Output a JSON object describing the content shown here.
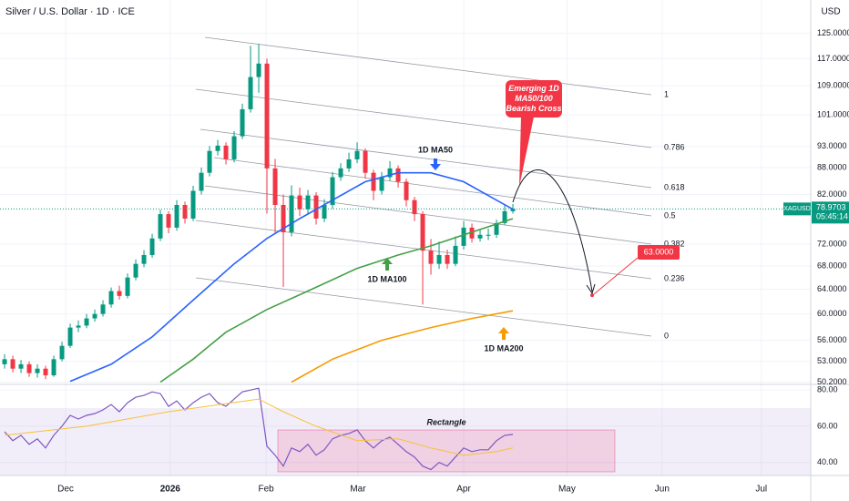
{
  "header": {
    "title": "Silver / U.S. Dollar · 1D · ICE",
    "currency": "USD"
  },
  "chart_data": [
    {
      "type": "candlestick",
      "symbol": "XAGUSD",
      "last_price": 78.9703,
      "countdown": "05:45:14",
      "log_scale": true,
      "grid": true,
      "up_color": "#089981",
      "down_color": "#f23645",
      "xlim": [
        -0.56,
        98.33
      ],
      "xticks": [
        {
          "value": 7.44,
          "label": "Dec"
        },
        {
          "value": 20.2,
          "label": "2026"
        },
        {
          "value": 31.9,
          "label": "Feb"
        },
        {
          "value": 43.1,
          "label": "Mar"
        },
        {
          "value": 56.0,
          "label": "Apr"
        },
        {
          "value": 68.6,
          "label": "May"
        },
        {
          "value": 80.2,
          "label": "Jun"
        },
        {
          "value": 92.3,
          "label": "Jul"
        }
      ],
      "ylim": [
        49.9,
        136.4
      ],
      "yticks": [
        {
          "value": 125,
          "label": "125.0000"
        },
        {
          "value": 117,
          "label": "117.0000"
        },
        {
          "value": 109,
          "label": "109.0000"
        },
        {
          "value": 101,
          "label": "101.0000"
        },
        {
          "value": 93,
          "label": "93.0000"
        },
        {
          "value": 88,
          "label": "88.0000"
        },
        {
          "value": 82,
          "label": "82.0000"
        },
        {
          "value": 72,
          "label": "72.0000"
        },
        {
          "value": 68,
          "label": "68.0000"
        },
        {
          "value": 64,
          "label": "64.0000"
        },
        {
          "value": 60,
          "label": "60.0000"
        },
        {
          "value": 56,
          "label": "56.0000"
        },
        {
          "value": 53,
          "label": "53.0000"
        },
        {
          "value": 50.2,
          "label": "50.2000"
        }
      ],
      "open": [
        52.6,
        53.3,
        52.0,
        52.6,
        51.4,
        52.0,
        51.1,
        53.3,
        55.2,
        57.9,
        58.2,
        59.3,
        60.0,
        61.5,
        63.7,
        62.9,
        66.0,
        68.4,
        70.0,
        73.1,
        77.9,
        75.2,
        79.8,
        77.0,
        82.8,
        86.8,
        91.9,
        93.2,
        89.9,
        95.5,
        102.5,
        111.5,
        115.5,
        87.8,
        79.8,
        74.3,
        81.8,
        78.9,
        81.8,
        77.0,
        79.8,
        85.8,
        87.8,
        89.9,
        91.9,
        86.8,
        82.8,
        85.8,
        87.8,
        84.8,
        80.8,
        77.9,
        70.8,
        68.4,
        70.0,
        68.4,
        71.7,
        75.2,
        73.1,
        73.8,
        73.8,
        76.1,
        78.5
      ],
      "high": [
        54.0,
        53.8,
        53.2,
        53.0,
        52.6,
        52.4,
        53.8,
        55.8,
        58.5,
        59.0,
        60.0,
        60.7,
        62.2,
        64.3,
        64.6,
        66.7,
        69.2,
        70.9,
        74.0,
        78.8,
        78.5,
        80.8,
        80.5,
        83.9,
        88.0,
        93.1,
        94.6,
        94.0,
        96.8,
        104.0,
        121.0,
        121.6,
        117.0,
        90.0,
        82.0,
        84.0,
        83.5,
        83.0,
        82.5,
        81.0,
        87.0,
        89.0,
        91.5,
        94.0,
        92.5,
        87.5,
        87.0,
        89.5,
        88.5,
        85.5,
        81.5,
        78.5,
        73.0,
        72.5,
        71.0,
        73.5,
        76.5,
        76.0,
        74.8,
        75.0,
        76.8,
        79.8,
        80.0
      ],
      "low": [
        52.0,
        51.5,
        51.4,
        50.9,
        50.8,
        50.6,
        50.9,
        53.0,
        54.9,
        57.2,
        57.8,
        58.8,
        59.6,
        61.0,
        62.3,
        62.5,
        65.5,
        67.8,
        69.5,
        72.6,
        74.1,
        74.6,
        76.0,
        76.5,
        82.0,
        86.0,
        90.8,
        88.7,
        89.2,
        94.8,
        101.6,
        107.0,
        78.0,
        74.0,
        64.4,
        73.5,
        77.5,
        78.0,
        75.8,
        76.3,
        79.0,
        85.0,
        87.0,
        89.0,
        85.5,
        80.8,
        82.0,
        85.0,
        83.5,
        79.5,
        76.5,
        61.5,
        66.5,
        67.5,
        67.5,
        68.0,
        71.0,
        72.3,
        72.5,
        72.8,
        73.2,
        75.8,
        78.0
      ],
      "close": [
        53.3,
        52.0,
        52.6,
        51.4,
        52.0,
        51.1,
        53.3,
        55.2,
        57.9,
        58.2,
        59.3,
        60.0,
        61.5,
        63.7,
        62.9,
        66.0,
        68.4,
        70.0,
        73.1,
        77.9,
        75.2,
        79.8,
        77.0,
        82.8,
        86.8,
        91.9,
        93.2,
        89.9,
        95.5,
        102.5,
        111.5,
        115.5,
        87.8,
        79.8,
        74.3,
        81.8,
        78.9,
        81.8,
        77.0,
        79.8,
        85.8,
        87.8,
        89.9,
        91.9,
        86.8,
        82.8,
        85.8,
        87.8,
        84.8,
        80.8,
        77.9,
        70.8,
        68.4,
        70.0,
        68.4,
        71.7,
        75.2,
        73.1,
        73.8,
        73.8,
        76.1,
        78.5,
        78.97
      ],
      "series": [
        {
          "name": "1D MA50",
          "color": "#2962ff",
          "x": [
            8,
            13,
            18,
            23,
            28,
            32,
            36,
            40,
            44,
            48,
            52,
            56,
            60,
            62
          ],
          "values": [
            50.3,
            52.6,
            56.5,
            62.2,
            68.4,
            73.1,
            77.0,
            80.8,
            84.8,
            86.8,
            86.8,
            84.8,
            80.8,
            78.9
          ]
        },
        {
          "name": "1D MA100",
          "color": "#43a047",
          "x": [
            19,
            23,
            27,
            32,
            37,
            43,
            48,
            52,
            57,
            62
          ],
          "values": [
            50.2,
            53.3,
            57.2,
            60.7,
            63.7,
            67.6,
            70.0,
            71.7,
            74.3,
            77.0
          ]
        },
        {
          "name": "1D MA200",
          "color": "#f59c00",
          "x": [
            35,
            40,
            46,
            52,
            57,
            62
          ],
          "values": [
            50.2,
            53.3,
            56.0,
            57.9,
            59.3,
            60.5
          ]
        }
      ],
      "fib_levels": [
        1,
        0.786,
        0.618,
        0.5,
        0.382,
        0.236,
        0
      ],
      "callout": "Emerging 1D MA50/100 Bearish Cross",
      "target": {
        "value": 63,
        "label": "63.0000"
      }
    },
    {
      "type": "line",
      "ylim": [
        32.8,
        83.1
      ],
      "band": [
        30,
        70
      ],
      "yticks": [
        {
          "value": 80,
          "label": "80.00"
        },
        {
          "value": 60,
          "label": "60.00"
        },
        {
          "value": 40,
          "label": "40.00"
        }
      ],
      "series": [
        {
          "color": "#7e57c2",
          "values": [
            57,
            52,
            55,
            50,
            53,
            48,
            55,
            60,
            66,
            64,
            66,
            67,
            69,
            72,
            68,
            73,
            76,
            77,
            79,
            78,
            71,
            74,
            69,
            73,
            76,
            78,
            73,
            71,
            75,
            79,
            80,
            81,
            49,
            44,
            38,
            48,
            46,
            50,
            44,
            47,
            53,
            55,
            56,
            58,
            52,
            48,
            52,
            54,
            50,
            46,
            43,
            38,
            36,
            40,
            38,
            43,
            48,
            46,
            47,
            47,
            52,
            55,
            55.5
          ]
        },
        {
          "color": "#f7c13a",
          "x": [
            0,
            10,
            20,
            31,
            34,
            38,
            43,
            48,
            52,
            56,
            60,
            62
          ],
          "values": [
            55,
            60,
            68,
            75,
            68,
            60,
            52,
            53,
            48,
            44,
            46,
            48
          ]
        }
      ],
      "rectangle_label": "Rectangle"
    }
  ]
}
